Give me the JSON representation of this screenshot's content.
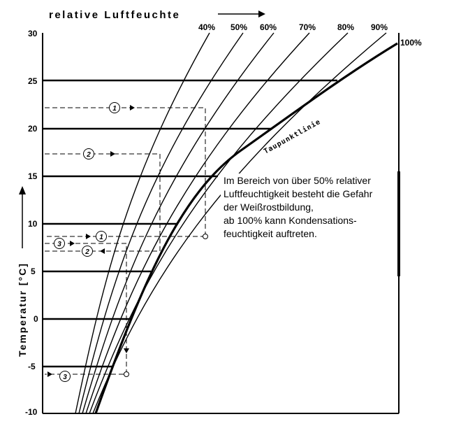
{
  "chart_data": {
    "type": "line",
    "title": "relative Luftfeuchte",
    "xlabel": "",
    "ylabel": "Temperatur [°C]",
    "ylim": [
      -10,
      30
    ],
    "y_ticks": [
      "30",
      "25",
      "20",
      "15",
      "10",
      "5",
      "0",
      "-5",
      "-10"
    ],
    "rh_curves": [
      "40%",
      "50%",
      "60%",
      "70%",
      "80%",
      "90%",
      "100%"
    ],
    "dew_point_label": "Taupunktlinie",
    "guide_lines": [
      {
        "temperature": 25,
        "dew_point_crossing": "100%"
      },
      {
        "temperature": 20,
        "dew_point_crossing": "100%"
      },
      {
        "temperature": 15,
        "dew_point_crossing": "100%"
      },
      {
        "temperature": 10,
        "dew_point_crossing": "100%"
      },
      {
        "temperature": 5,
        "dew_point_crossing": "100%"
      },
      {
        "temperature": 0,
        "dew_point_crossing": "100%"
      },
      {
        "temperature": -5,
        "dew_point_crossing": "100%"
      }
    ],
    "examples": [
      {
        "marker": "1",
        "start_temperature": 22.2,
        "cool_to": 8.8
      },
      {
        "marker": "2",
        "start_temperature": 17.5,
        "cool_to": 7.0
      },
      {
        "marker": "3",
        "start_temperature": 8.0,
        "cool_to": -6.0
      }
    ],
    "grid": false
  },
  "annotation": {
    "lines": [
      "Im Bereich von über 50% relativer",
      "Luftfeuchtigkeit besteht die Gefahr",
      "der Weißrostbildung,",
      "ab 100% kann Kondensations-",
      "feuchtigkeit auftreten."
    ]
  }
}
